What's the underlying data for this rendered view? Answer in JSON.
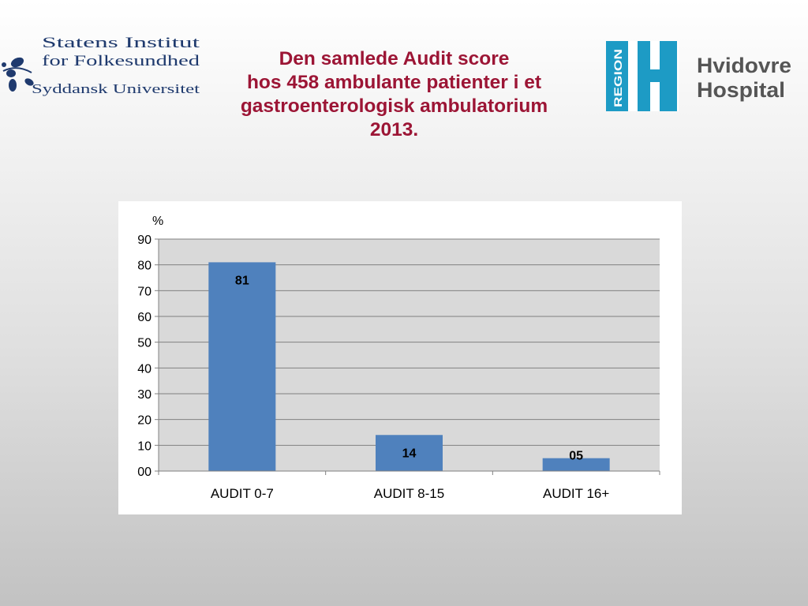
{
  "title_lines": [
    "Den samlede Audit score",
    "hos 458 ambulante patienter i et",
    "gastroenterologisk ambulatorium",
    "2013."
  ],
  "logos": {
    "left": {
      "icon": "leaf-branch-icon",
      "lines": [
        "Statens Institut",
        "for Folkesundhed",
        "Syddansk Universitet"
      ],
      "color": "#1f3a6e"
    },
    "right": {
      "badge_text": "REGION",
      "badge_letter": "H",
      "badge_color": "#1d9bc5",
      "name_lines": [
        "Hvidovre",
        "Hospital"
      ],
      "name_color": "#555555"
    }
  },
  "colors": {
    "title": "#9c1535",
    "bar": "#4f81bd",
    "plot_bg": "#d9d9d9",
    "grid": "#808080"
  },
  "chart_data": {
    "type": "bar",
    "categories": [
      "AUDIT 0-7",
      "AUDIT 8-15",
      "AUDIT 16+"
    ],
    "values": [
      81,
      14,
      5
    ],
    "value_labels": [
      "81",
      "14",
      "05"
    ],
    "ylabel": "%",
    "ylim": [
      0,
      90
    ],
    "yticks": [
      0,
      10,
      20,
      30,
      40,
      50,
      60,
      70,
      80,
      90
    ],
    "ytick_labels": [
      "00",
      "10",
      "20",
      "30",
      "40",
      "50",
      "60",
      "70",
      "80",
      "90"
    ],
    "grid": true,
    "legend": false
  }
}
